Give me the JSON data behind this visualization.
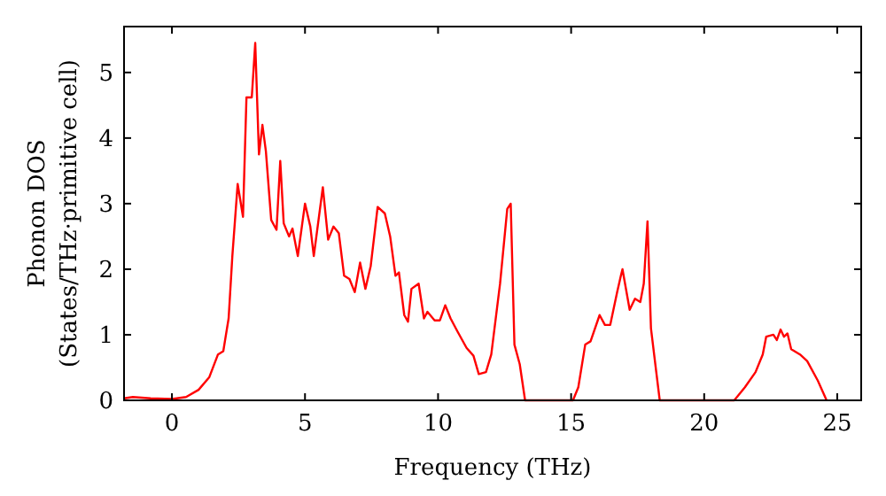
{
  "chart_data": {
    "type": "line",
    "xlabel": "Frequency (THz)",
    "ylabel": "Phonon DOS\n(States/THz·primitive cell)",
    "xlim": [
      -1.8,
      25.9
    ],
    "ylim": [
      0,
      5.7
    ],
    "xticks": [
      0,
      5,
      10,
      15,
      20,
      25
    ],
    "yticks": [
      0,
      1,
      2,
      3,
      4,
      5
    ],
    "grid": false,
    "marker": "none",
    "line_style": "solid",
    "series": [
      {
        "color": "#ff0000",
        "x": [
          -1.8,
          -1.47,
          -0.8,
          0,
          0.53,
          1.0,
          1.4,
          1.73,
          1.93,
          2.13,
          2.27,
          2.47,
          2.67,
          2.8,
          3.0,
          3.13,
          3.27,
          3.4,
          3.53,
          3.73,
          3.93,
          4.07,
          4.2,
          4.4,
          4.53,
          4.73,
          5.0,
          5.2,
          5.33,
          5.67,
          5.87,
          6.07,
          6.27,
          6.47,
          6.67,
          6.87,
          7.07,
          7.27,
          7.47,
          7.73,
          8.0,
          8.2,
          8.4,
          8.53,
          8.73,
          8.87,
          9.0,
          9.27,
          9.47,
          9.6,
          9.87,
          10.07,
          10.27,
          10.47,
          10.73,
          11.07,
          11.33,
          11.53,
          11.8,
          12.0,
          12.33,
          12.6,
          12.73,
          12.87,
          13.07,
          13.27,
          15.07,
          15.27,
          15.53,
          15.73,
          16.07,
          16.27,
          16.47,
          16.73,
          16.87,
          16.93,
          17.2,
          17.4,
          17.6,
          17.73,
          17.87,
          18.0,
          18.2,
          18.33,
          21.13,
          21.53,
          21.93,
          22.2,
          22.33,
          22.6,
          22.73,
          22.87,
          23.0,
          23.13,
          23.27,
          23.6,
          23.87,
          24.27,
          24.6
        ],
        "values": [
          0.03,
          0.05,
          0.03,
          0.02,
          0.05,
          0.16,
          0.35,
          0.7,
          0.75,
          1.25,
          2.2,
          3.3,
          2.8,
          4.62,
          4.62,
          5.45,
          3.75,
          4.2,
          3.8,
          2.75,
          2.6,
          3.65,
          2.7,
          2.5,
          2.62,
          2.2,
          3.0,
          2.65,
          2.2,
          3.25,
          2.45,
          2.65,
          2.55,
          1.9,
          1.85,
          1.65,
          2.1,
          1.7,
          2.05,
          2.95,
          2.85,
          2.5,
          1.9,
          1.95,
          1.3,
          1.2,
          1.7,
          1.78,
          1.25,
          1.35,
          1.22,
          1.22,
          1.45,
          1.25,
          1.05,
          0.8,
          0.68,
          0.4,
          0.43,
          0.7,
          1.78,
          2.92,
          3.0,
          0.85,
          0.55,
          0,
          0,
          0.2,
          0.85,
          0.9,
          1.3,
          1.15,
          1.15,
          1.65,
          1.9,
          2.0,
          1.38,
          1.55,
          1.5,
          1.78,
          2.73,
          1.1,
          0.43,
          0,
          0,
          0.2,
          0.43,
          0.7,
          0.97,
          1.0,
          0.92,
          1.08,
          0.97,
          1.02,
          0.78,
          0.7,
          0.6,
          0.3,
          0
        ]
      }
    ]
  }
}
